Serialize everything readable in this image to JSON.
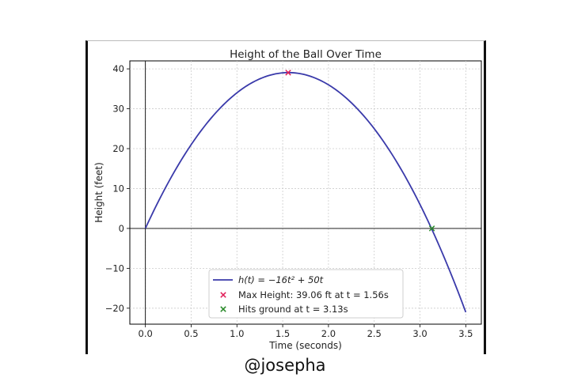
{
  "caption": "@josepha",
  "chart_data": {
    "type": "line",
    "title": "Height of the Ball Over Time",
    "xlabel": "Time (seconds)",
    "ylabel": "Height (feet)",
    "xlim": [
      -0.17,
      3.67
    ],
    "ylim": [
      -24,
      42
    ],
    "xticks": [
      0.0,
      0.5,
      1.0,
      1.5,
      2.0,
      2.5,
      3.0,
      3.5
    ],
    "xtick_labels": [
      "0.0",
      "0.5",
      "1.0",
      "1.5",
      "2.0",
      "2.5",
      "3.0",
      "3.5"
    ],
    "yticks": [
      -20,
      -10,
      0,
      10,
      20,
      30,
      40
    ],
    "ytick_labels": [
      "−20",
      "−10",
      "0",
      "10",
      "20",
      "30",
      "40"
    ],
    "grid": true,
    "legend_position": "bottom-center",
    "series": [
      {
        "name": "h(t) = −16t² + 50t",
        "function": "-16*t^2 + 50*t",
        "t_range": [
          0,
          3.5
        ],
        "color": "#3a3aaa"
      }
    ],
    "markers": [
      {
        "name": "Max Height: 39.06 ft at t = 1.56s",
        "x": 1.56,
        "y": 39.06,
        "color": "#e0205a",
        "shape": "x"
      },
      {
        "name": "Hits ground at t = 3.13s",
        "x": 3.13,
        "y": 0,
        "color": "#2a8a2a",
        "shape": "x"
      }
    ],
    "reference_lines": [
      {
        "orientation": "horizontal",
        "value": 0,
        "color": "#000000"
      },
      {
        "orientation": "vertical",
        "value": 0,
        "color": "#000000"
      }
    ]
  }
}
